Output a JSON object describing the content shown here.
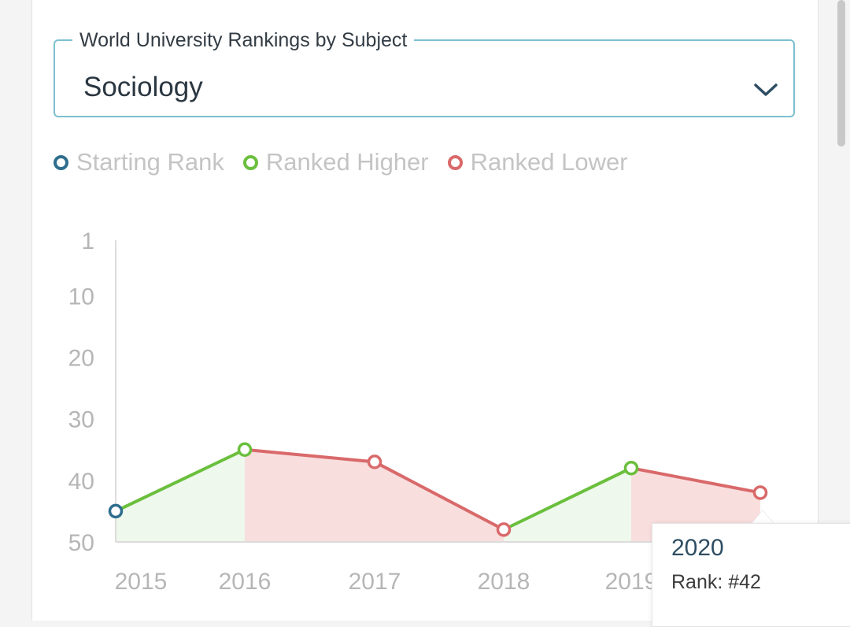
{
  "selector": {
    "label": "World University Rankings by Subject",
    "value": "Sociology",
    "icon": "chevron-down-icon"
  },
  "legend": {
    "items": [
      {
        "label": "Starting Rank",
        "color": "#2e6e8e"
      },
      {
        "label": "Ranked Higher",
        "color": "#6abf3c"
      },
      {
        "label": "Ranked Lower",
        "color": "#d9696a"
      }
    ]
  },
  "chart_data": {
    "type": "line",
    "x": [
      "2015",
      "2016",
      "2017",
      "2018",
      "2019",
      "2020"
    ],
    "values": [
      45,
      35,
      37,
      48,
      38,
      42
    ],
    "y_ticks": [
      "1",
      "10",
      "20",
      "30",
      "40",
      "50"
    ],
    "y_tick_values": [
      1,
      10,
      20,
      30,
      40,
      50
    ],
    "ylim": [
      1,
      50
    ],
    "y_inverted": true,
    "colors": {
      "start": "#2e6e8e",
      "higher": "#6abf3c",
      "lower": "#d9696a",
      "higher_fill": "#eef8ec",
      "lower_fill": "#f9dede"
    }
  },
  "tooltip": {
    "year": "2020",
    "rank": "Rank: #42"
  }
}
